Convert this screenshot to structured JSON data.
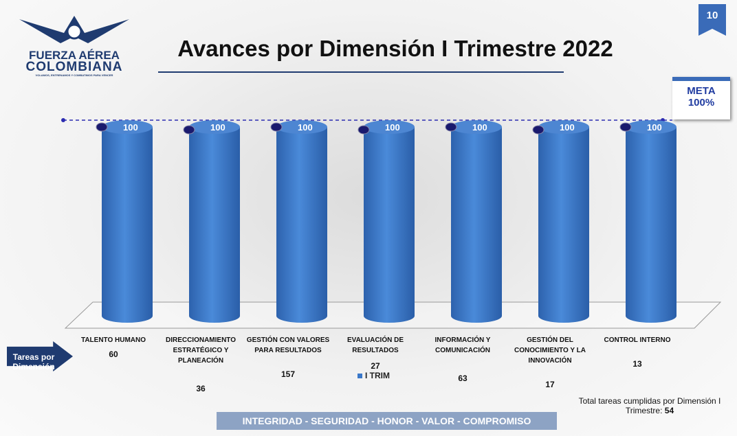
{
  "page_number": "10",
  "logo": {
    "line1": "FUERZA AÉREA",
    "line2": "COLOMBIANA",
    "motto": "VOLAMOS, ENTRENAMOS Y COMBATIMOS PARA VENCER"
  },
  "chart_data": {
    "type": "bar3d",
    "title": "Avances por Dimensión I Trimestre 2022",
    "categories": [
      "TALENTO HUMANO",
      "DIRECCIONAMIENTO ESTRATÉGICO Y PLANEACIÓN",
      "GESTIÓN CON VALORES PARA RESULTADOS",
      "EVALUACIÓN DE RESULTADOS",
      "INFORMACIÓN Y COMUNICACIÓN",
      "GESTIÓN DEL CONOCIMIENTO Y LA INNOVACIÓN",
      "CONTROL INTERNO"
    ],
    "series": [
      {
        "name": "I TRIM",
        "color": "#3a78c9",
        "values": [
          100,
          100,
          100,
          100,
          100,
          100,
          100
        ]
      }
    ],
    "ylim": [
      0,
      100
    ],
    "meta": {
      "name": "META",
      "value": 100,
      "value_label": "100%"
    },
    "tasks": {
      "label": "Tareas por Dimensión",
      "values": [
        60,
        36,
        157,
        27,
        63,
        17,
        13
      ]
    },
    "total": {
      "label": "Total tareas cumplidas por Dimensión I Trimestre:",
      "value": 54
    }
  },
  "footer": "INTEGRIDAD - SEGURIDAD - HONOR - VALOR - COMPROMISO"
}
